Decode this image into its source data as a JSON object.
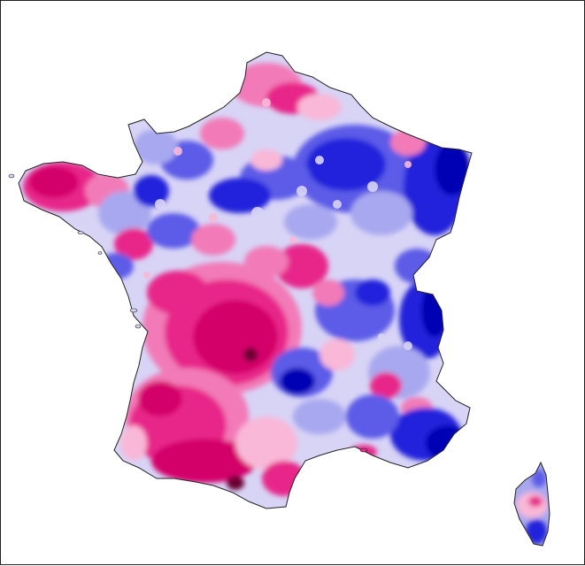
{
  "map": {
    "palette": {
      "deep_magenta": "#d4006a",
      "magenta": "#e8288a",
      "pink": "#f27ab8",
      "light_pink": "#f9b8d8",
      "lavender": "#d8d4f6",
      "light_blue": "#a8a8f0",
      "blue": "#5c5ce8",
      "royal_blue": "#2020dc",
      "deep_blue": "#0000b4",
      "darkest_magenta": "#6a0030",
      "darkest_blue": "#000060",
      "outline": "#222222"
    },
    "regions": [
      "mainland-france",
      "corsica"
    ]
  }
}
